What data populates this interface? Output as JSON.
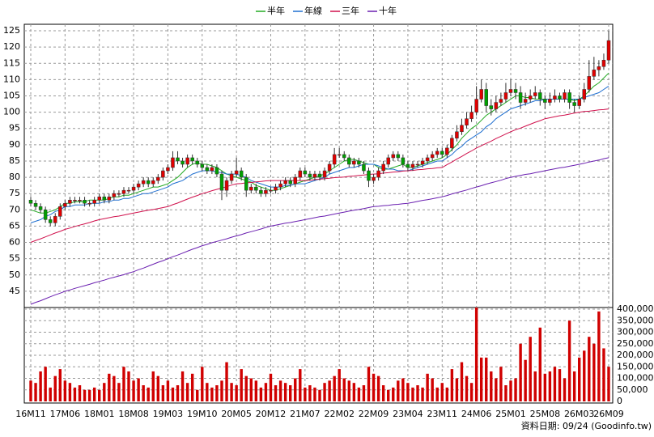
{
  "chart_data": {
    "type": "candlestick",
    "legend": [
      {
        "name": "半年",
        "color": "#22aa22"
      },
      {
        "name": "年線",
        "color": "#1f6fd0"
      },
      {
        "name": "三年",
        "color": "#d0104c"
      },
      {
        "name": "十年",
        "color": "#6a1fb0"
      }
    ],
    "footer": "資料日期: 09/24 (Goodinfo.tw)",
    "up_color": "#e00000",
    "down_color": "#00a000",
    "volume_color": "#d00000",
    "grid": true,
    "categories": [
      "16M11",
      null,
      null,
      null,
      null,
      null,
      null,
      "17M06",
      null,
      null,
      null,
      null,
      null,
      null,
      "18M01",
      null,
      null,
      null,
      null,
      null,
      null,
      "18M08",
      null,
      null,
      null,
      null,
      null,
      null,
      "19M03",
      null,
      null,
      null,
      null,
      null,
      null,
      "19M10",
      null,
      null,
      null,
      null,
      null,
      null,
      "20M05",
      null,
      null,
      null,
      null,
      null,
      null,
      "20M12",
      null,
      null,
      null,
      null,
      null,
      null,
      "21M07",
      null,
      null,
      null,
      null,
      null,
      null,
      "22M02",
      null,
      null,
      null,
      null,
      null,
      null,
      "22M09",
      null,
      null,
      null,
      null,
      null,
      null,
      "23M04",
      null,
      null,
      null,
      null,
      null,
      null,
      "23M11",
      null,
      null,
      null,
      null,
      null,
      null,
      "24M06",
      null,
      null,
      null,
      null,
      null,
      null,
      "25M01",
      null,
      null,
      null,
      null,
      null,
      null,
      "25M08",
      null,
      null,
      null,
      null,
      null,
      null,
      "26M03",
      null,
      null,
      null,
      null,
      null,
      "26M09"
    ],
    "ohlc": [
      [
        73,
        74,
        71,
        72
      ],
      [
        72,
        73,
        70,
        71
      ],
      [
        71,
        72,
        69,
        70
      ],
      [
        70,
        71,
        66,
        67
      ],
      [
        67,
        68,
        65,
        66
      ],
      [
        66,
        69,
        65,
        68
      ],
      [
        68,
        72,
        67,
        71
      ],
      [
        71,
        73,
        70,
        72
      ],
      [
        72,
        74,
        71,
        73
      ],
      [
        73,
        74,
        72,
        73
      ],
      [
        73,
        74,
        72,
        73
      ],
      [
        73,
        74,
        71,
        72
      ],
      [
        72,
        73,
        71,
        72
      ],
      [
        72,
        74,
        71,
        73
      ],
      [
        73,
        75,
        72,
        74
      ],
      [
        74,
        75,
        72,
        73
      ],
      [
        73,
        75,
        72,
        74
      ],
      [
        74,
        76,
        73,
        75
      ],
      [
        75,
        76,
        74,
        75
      ],
      [
        75,
        77,
        74,
        76
      ],
      [
        76,
        77,
        75,
        76
      ],
      [
        76,
        78,
        75,
        77
      ],
      [
        77,
        79,
        76,
        78
      ],
      [
        78,
        80,
        77,
        79
      ],
      [
        79,
        80,
        77,
        78
      ],
      [
        78,
        80,
        77,
        79
      ],
      [
        79,
        81,
        78,
        80
      ],
      [
        80,
        83,
        79,
        82
      ],
      [
        82,
        84,
        81,
        83
      ],
      [
        83,
        88,
        82,
        86
      ],
      [
        86,
        88,
        84,
        85
      ],
      [
        85,
        86,
        83,
        84
      ],
      [
        84,
        87,
        83,
        86
      ],
      [
        86,
        87,
        84,
        85
      ],
      [
        85,
        86,
        83,
        84
      ],
      [
        84,
        85,
        82,
        83
      ],
      [
        83,
        84,
        81,
        82
      ],
      [
        82,
        84,
        81,
        83
      ],
      [
        83,
        84,
        80,
        81
      ],
      [
        81,
        82,
        73,
        76
      ],
      [
        76,
        80,
        74,
        79
      ],
      [
        79,
        82,
        78,
        81
      ],
      [
        81,
        86,
        80,
        82
      ],
      [
        82,
        83,
        79,
        80
      ],
      [
        80,
        81,
        74,
        76
      ],
      [
        76,
        78,
        75,
        77
      ],
      [
        77,
        78,
        75,
        76
      ],
      [
        76,
        77,
        74,
        75
      ],
      [
        75,
        77,
        74,
        76
      ],
      [
        76,
        77,
        75,
        76
      ],
      [
        76,
        78,
        75,
        77
      ],
      [
        77,
        79,
        76,
        78
      ],
      [
        78,
        80,
        77,
        79
      ],
      [
        79,
        80,
        77,
        78
      ],
      [
        78,
        81,
        77,
        80
      ],
      [
        80,
        83,
        79,
        82
      ],
      [
        82,
        83,
        80,
        81
      ],
      [
        81,
        82,
        79,
        80
      ],
      [
        80,
        82,
        79,
        81
      ],
      [
        81,
        82,
        79,
        80
      ],
      [
        80,
        83,
        79,
        82
      ],
      [
        82,
        85,
        81,
        84
      ],
      [
        84,
        89,
        83,
        87
      ],
      [
        87,
        89,
        86,
        87
      ],
      [
        87,
        88,
        85,
        86
      ],
      [
        86,
        87,
        83,
        84
      ],
      [
        84,
        86,
        83,
        85
      ],
      [
        85,
        86,
        83,
        84
      ],
      [
        84,
        85,
        81,
        82
      ],
      [
        82,
        83,
        77,
        79
      ],
      [
        79,
        81,
        78,
        80
      ],
      [
        80,
        83,
        79,
        82
      ],
      [
        82,
        85,
        81,
        84
      ],
      [
        84,
        87,
        83,
        86
      ],
      [
        86,
        88,
        85,
        87
      ],
      [
        87,
        88,
        85,
        86
      ],
      [
        86,
        87,
        83,
        84
      ],
      [
        84,
        85,
        82,
        83
      ],
      [
        83,
        85,
        82,
        84
      ],
      [
        84,
        85,
        83,
        84
      ],
      [
        84,
        86,
        83,
        85
      ],
      [
        85,
        87,
        84,
        86
      ],
      [
        86,
        88,
        85,
        87
      ],
      [
        87,
        89,
        86,
        88
      ],
      [
        88,
        89,
        86,
        87
      ],
      [
        87,
        90,
        86,
        89
      ],
      [
        89,
        93,
        88,
        92
      ],
      [
        92,
        96,
        91,
        94
      ],
      [
        94,
        98,
        93,
        96
      ],
      [
        96,
        100,
        95,
        98
      ],
      [
        98,
        102,
        97,
        100
      ],
      [
        100,
        108,
        99,
        104
      ],
      [
        104,
        110,
        103,
        107
      ],
      [
        107,
        109,
        100,
        102
      ],
      [
        102,
        104,
        99,
        101
      ],
      [
        101,
        105,
        100,
        103
      ],
      [
        103,
        106,
        102,
        104
      ],
      [
        104,
        109,
        103,
        106
      ],
      [
        106,
        110,
        105,
        107
      ],
      [
        107,
        109,
        104,
        106
      ],
      [
        106,
        108,
        101,
        103
      ],
      [
        103,
        106,
        102,
        104
      ],
      [
        104,
        107,
        103,
        105
      ],
      [
        105,
        108,
        104,
        106
      ],
      [
        106,
        107,
        102,
        104
      ],
      [
        104,
        105,
        101,
        103
      ],
      [
        103,
        106,
        102,
        104
      ],
      [
        104,
        107,
        103,
        105
      ],
      [
        105,
        106,
        103,
        104
      ],
      [
        104,
        107,
        103,
        106
      ],
      [
        106,
        107,
        101,
        103
      ],
      [
        103,
        104,
        100,
        102
      ],
      [
        102,
        105,
        101,
        104
      ],
      [
        104,
        109,
        103,
        107
      ],
      [
        107,
        116,
        106,
        111
      ],
      [
        111,
        117,
        110,
        113
      ],
      [
        113,
        116,
        111,
        114
      ],
      [
        114,
        118,
        113,
        116
      ],
      [
        116,
        125,
        115,
        122
      ]
    ],
    "volume": [
      90000,
      80000,
      130000,
      150000,
      60000,
      110000,
      140000,
      90000,
      80000,
      60000,
      70000,
      50000,
      50000,
      60000,
      50000,
      80000,
      120000,
      110000,
      80000,
      150000,
      130000,
      90000,
      100000,
      70000,
      60000,
      130000,
      110000,
      70000,
      90000,
      60000,
      70000,
      130000,
      80000,
      120000,
      50000,
      150000,
      80000,
      60000,
      70000,
      90000,
      170000,
      80000,
      70000,
      140000,
      110000,
      100000,
      90000,
      60000,
      80000,
      120000,
      70000,
      90000,
      80000,
      70000,
      100000,
      140000,
      60000,
      70000,
      60000,
      50000,
      80000,
      90000,
      110000,
      140000,
      100000,
      90000,
      80000,
      60000,
      70000,
      150000,
      120000,
      110000,
      70000,
      50000,
      60000,
      90000,
      100000,
      80000,
      60000,
      70000,
      60000,
      120000,
      100000,
      60000,
      80000,
      60000,
      140000,
      100000,
      170000,
      110000,
      80000,
      410000,
      190000,
      190000,
      130000,
      100000,
      150000,
      70000,
      90000,
      100000,
      250000,
      180000,
      280000,
      130000,
      320000,
      120000,
      130000,
      150000,
      140000,
      100000,
      350000,
      130000,
      190000,
      220000,
      280000,
      250000,
      390000,
      230000,
      150000
    ],
    "series": [
      {
        "name": "半年",
        "color": "#22aa22",
        "values": [
          70,
          69.5,
          69,
          69,
          69.5,
          70,
          71,
          72,
          72,
          72.5,
          72.5,
          72.5,
          73,
          73,
          73,
          73,
          73.5,
          74,
          74,
          74.5,
          74.5,
          75,
          75.5,
          76,
          76.5,
          77,
          77,
          77.5,
          78,
          79,
          80,
          81.5,
          83,
          84,
          84.5,
          84,
          84,
          83.5,
          83,
          82,
          81,
          80.5,
          80,
          79.5,
          79,
          78.5,
          77.5,
          77,
          76.5,
          76,
          76,
          76.5,
          77,
          77.5,
          78,
          78.5,
          79,
          79.5,
          80,
          80.5,
          81,
          82,
          83,
          84,
          85,
          85.5,
          85.5,
          85,
          84.5,
          84,
          84,
          83,
          82.5,
          82.5,
          83,
          83.5,
          84,
          83,
          83,
          83.5,
          84,
          84.5,
          85,
          85.5,
          86,
          87,
          88.5,
          90,
          92,
          93.5,
          95,
          96,
          97.5,
          99,
          100,
          101,
          102,
          103,
          104,
          105,
          105,
          104.5,
          104.5,
          104,
          104,
          104,
          104,
          104,
          104,
          104,
          104,
          103.5,
          104,
          105,
          106.5,
          108,
          109,
          110.5,
          112
        ]
      },
      {
        "name": "年線",
        "color": "#1f6fd0",
        "values": [
          66,
          66.5,
          67,
          68,
          68.5,
          69.5,
          70,
          71,
          71,
          71.5,
          71.5,
          71.5,
          72,
          72,
          72,
          72.5,
          72.5,
          73,
          73,
          73.5,
          73.5,
          74,
          74.5,
          75,
          75,
          75.5,
          76,
          76.5,
          77,
          78,
          78.5,
          79,
          80,
          81,
          81.5,
          82,
          82,
          82,
          81.5,
          81.5,
          81,
          81,
          81,
          80.5,
          80,
          79,
          78.5,
          78,
          77.5,
          77,
          77,
          77,
          77.5,
          77.5,
          78,
          78,
          78,
          78.5,
          79,
          79.5,
          80,
          81,
          81.5,
          82,
          82.5,
          83,
          83,
          83.5,
          84,
          84,
          84,
          83.5,
          83,
          82.5,
          82.5,
          82,
          82,
          82,
          82.5,
          83,
          83.5,
          84,
          84.5,
          85,
          85,
          86,
          87,
          88.5,
          89.5,
          91,
          92,
          93,
          94,
          95.5,
          96.5,
          98,
          99,
          100,
          101,
          101.5,
          102,
          102.5,
          103,
          103.5,
          103.5,
          104,
          104,
          104,
          104,
          104,
          104,
          104,
          104,
          104.5,
          105,
          105.5,
          106,
          107,
          108
        ]
      },
      {
        "name": "三年",
        "color": "#d0104c",
        "values": [
          60,
          60.6,
          61.1,
          61.7,
          62.3,
          62.9,
          63.4,
          64,
          64.4,
          64.9,
          65.3,
          65.7,
          66.1,
          66.6,
          67,
          67.3,
          67.6,
          67.9,
          68.1,
          68.4,
          68.7,
          69,
          69.3,
          69.6,
          69.9,
          70.1,
          70.4,
          70.7,
          71,
          71.6,
          72.1,
          72.7,
          73.3,
          73.9,
          74.4,
          75,
          75.4,
          75.9,
          76.3,
          76.7,
          77.1,
          77.6,
          78,
          78.1,
          78.3,
          78.4,
          78.6,
          78.7,
          78.9,
          79,
          79,
          79,
          79,
          79,
          79,
          79,
          79,
          79.1,
          79.3,
          79.4,
          79.6,
          79.7,
          79.9,
          80,
          80.1,
          80.3,
          80.4,
          80.6,
          80.7,
          80.9,
          81,
          81.1,
          81.3,
          81.4,
          81.6,
          81.7,
          81.9,
          82,
          82.1,
          82.3,
          82.4,
          82.6,
          82.7,
          82.9,
          83,
          83.9,
          84.7,
          85.6,
          86.4,
          87.3,
          88.1,
          89,
          89.7,
          90.4,
          91.1,
          91.9,
          92.6,
          93.3,
          94,
          94.6,
          95.1,
          95.7,
          96.3,
          96.9,
          97.4,
          98,
          98.3,
          98.6,
          98.9,
          99.1,
          99.4,
          99.7,
          100,
          100.2,
          100.3,
          100.5,
          100.7,
          100.8,
          101
        ]
      },
      {
        "name": "十年",
        "color": "#6a1fb0",
        "values": [
          41,
          41.6,
          42.1,
          42.7,
          43.3,
          43.9,
          44.4,
          45,
          45.4,
          45.9,
          46.3,
          46.7,
          47.1,
          47.6,
          48,
          48.4,
          48.9,
          49.3,
          49.7,
          50.1,
          50.6,
          51,
          51.6,
          52.1,
          52.7,
          53.3,
          53.9,
          54.4,
          55,
          55.6,
          56.1,
          56.7,
          57.3,
          57.9,
          58.4,
          59,
          59.4,
          59.9,
          60.3,
          60.7,
          61.1,
          61.6,
          62,
          62.4,
          62.9,
          63.3,
          63.7,
          64.1,
          64.6,
          65,
          65.3,
          65.6,
          65.9,
          66.1,
          66.4,
          66.7,
          67,
          67.3,
          67.6,
          67.9,
          68.1,
          68.4,
          68.7,
          69,
          69.3,
          69.6,
          69.9,
          70.1,
          70.4,
          70.7,
          71,
          71.1,
          71.3,
          71.4,
          71.6,
          71.7,
          71.9,
          72,
          72.3,
          72.6,
          72.9,
          73.1,
          73.4,
          73.7,
          74,
          74.4,
          74.9,
          75.3,
          75.7,
          76.1,
          76.6,
          77,
          77.4,
          77.9,
          78.3,
          78.7,
          79.1,
          79.6,
          80,
          80.3,
          80.6,
          80.9,
          81.1,
          81.4,
          81.7,
          82,
          82.3,
          82.6,
          82.9,
          83.1,
          83.4,
          83.7,
          84,
          84.3,
          84.7,
          85,
          85.3,
          85.7,
          86
        ]
      }
    ],
    "ylim": [
      40,
      127
    ],
    "yticks": [
      45,
      50,
      55,
      60,
      65,
      70,
      75,
      80,
      85,
      90,
      95,
      100,
      105,
      110,
      115,
      120,
      125
    ],
    "y2lim": [
      0,
      400000
    ],
    "y2ticks": [
      0,
      {
        "value": 50000,
        "label": "50,000"
      },
      {
        "value": 100000,
        "label": "100,000"
      },
      {
        "value": 150000,
        "label": "150,000"
      },
      {
        "value": 200000,
        "label": "200,000"
      },
      {
        "value": 250000,
        "label": "250,000"
      },
      {
        "value": 300000,
        "label": "300,000"
      },
      {
        "value": 350000,
        "label": "350,000"
      },
      {
        "value": 400000,
        "label": "400,000"
      }
    ]
  }
}
